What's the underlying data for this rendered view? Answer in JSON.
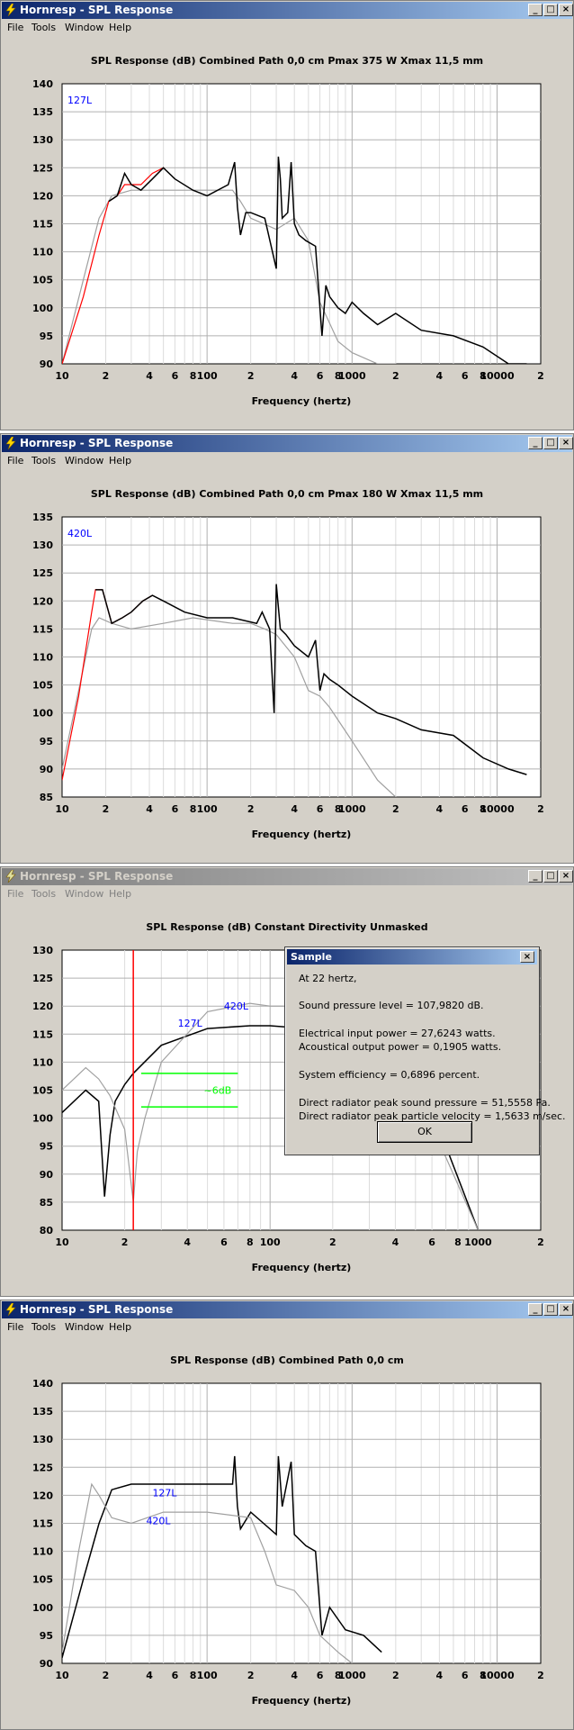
{
  "app": {
    "icon": "lightning-bolt-icon"
  },
  "colors": {
    "titlebar_active": "#0a246a",
    "titlebar_inactive": "#808080",
    "primary": "#000000",
    "secondary": "#a0a0a0",
    "highlight": "#ff0000",
    "annotation": "#0000ff",
    "marker": "#00ff00",
    "face": "#d4d0c8"
  },
  "windows": [
    {
      "title": "Hornresp - SPL Response",
      "active": true,
      "menu": [
        "File",
        "Tools",
        "Window",
        "Help"
      ],
      "chart_header": "SPL Response (dB)    Combined    Path 0,0 cm    Pmax 375 W    Xmax 11,5 mm",
      "corner_label": "127L"
    },
    {
      "title": "Hornresp - SPL Response",
      "active": true,
      "menu": [
        "File",
        "Tools",
        "Window",
        "Help"
      ],
      "chart_header": "SPL Response (dB)    Combined    Path 0,0 cm    Pmax 180 W    Xmax 11,5 mm",
      "corner_label": "420L"
    },
    {
      "title": "Hornresp - SPL Response",
      "active": false,
      "menu": [
        "File",
        "Tools",
        "Window",
        "Help"
      ],
      "chart_header": "SPL Response (dB)    Constant Directivity    Unmasked",
      "corner_label": ""
    },
    {
      "title": "Hornresp - SPL Response",
      "active": true,
      "menu": [
        "File",
        "Tools",
        "Window",
        "Help"
      ],
      "chart_header": "SPL Response (dB)    Combined    Path 0,0 cm",
      "corner_label": ""
    }
  ],
  "dialog": {
    "title": "Sample",
    "lines": [
      "At 22 hertz,",
      "Sound pressure level = 107,9820 dB.",
      "Electrical input power = 27,6243 watts.",
      "Acoustical output power = 0,1905 watts.",
      "System efficiency = 0,6896 percent.",
      "Direct radiator peak sound pressure = 51,5558 Pa.",
      "Direct radiator peak particle velocity = 1,5633 m/sec."
    ],
    "ok_label": "OK"
  },
  "chart_data": [
    {
      "type": "line",
      "xlabel": "Frequency (hertz)",
      "ylabel": "SPL Response (dB)",
      "x_scale": "log",
      "xlim": [
        10,
        20000
      ],
      "ylim": [
        90,
        140
      ],
      "yticks": [
        90,
        95,
        100,
        105,
        110,
        115,
        120,
        125,
        130,
        135,
        140
      ],
      "xtick_labels": [
        "10",
        "2",
        "4",
        "6",
        "8",
        "100",
        "2",
        "4",
        "6",
        "8",
        "1000",
        "2",
        "4",
        "6",
        "8",
        "10000",
        "2"
      ],
      "grid": true,
      "series": [
        {
          "color": "#a0a0a0",
          "x": [
            10,
            14,
            18,
            22,
            30,
            50,
            100,
            150,
            170,
            200,
            300,
            400,
            500,
            600,
            800,
            1000,
            1500,
            2000
          ],
          "y": [
            90,
            105,
            116,
            120,
            121,
            121,
            121,
            121,
            119,
            116,
            114,
            116,
            112,
            101,
            94,
            92,
            90,
            90
          ]
        },
        {
          "color": "#ff0000",
          "x": [
            10,
            14,
            18,
            21,
            24,
            27,
            30,
            35,
            42,
            50
          ],
          "y": [
            90,
            102,
            113,
            119,
            120,
            122,
            122,
            122,
            124,
            125
          ]
        },
        {
          "color": "#000000",
          "x": [
            21,
            24,
            27,
            30,
            35,
            42,
            50,
            60,
            80,
            100,
            140,
            155,
            162,
            170,
            185,
            200,
            250,
            300,
            310,
            320,
            330,
            360,
            380,
            400,
            430,
            480,
            560,
            600,
            620,
            660,
            700,
            800,
            900,
            1000,
            1200,
            1500,
            2000,
            3000,
            5000,
            8000,
            12000,
            16000
          ],
          "y": [
            119,
            120,
            124,
            122,
            121,
            123,
            125,
            123,
            121,
            120,
            122,
            126,
            118,
            113,
            117,
            117,
            116,
            107,
            127,
            123,
            116,
            117,
            126,
            115,
            113,
            112,
            111,
            100,
            95,
            104,
            102,
            100,
            99,
            101,
            99,
            97,
            99,
            96,
            95,
            93,
            90,
            90
          ]
        }
      ],
      "annotations": [
        {
          "text": "127L",
          "position": "top-left"
        }
      ]
    },
    {
      "type": "line",
      "xlabel": "Frequency (hertz)",
      "ylabel": "SPL Response (dB)",
      "x_scale": "log",
      "xlim": [
        10,
        20000
      ],
      "ylim": [
        85,
        135
      ],
      "yticks": [
        85,
        90,
        95,
        100,
        105,
        110,
        115,
        120,
        125,
        130,
        135
      ],
      "xtick_labels": [
        "10",
        "2",
        "4",
        "6",
        "8",
        "100",
        "2",
        "4",
        "6",
        "8",
        "1000",
        "2",
        "4",
        "6",
        "8",
        "10000",
        "2"
      ],
      "grid": true,
      "series": [
        {
          "color": "#a0a0a0",
          "x": [
            10,
            13,
            16,
            18,
            22,
            30,
            50,
            80,
            150,
            200,
            250,
            300,
            400,
            500,
            600,
            700,
            1000,
            1500,
            2000
          ],
          "y": [
            90,
            104,
            115,
            117,
            116,
            115,
            116,
            117,
            116,
            116,
            115,
            114,
            110,
            104,
            103,
            101,
            95,
            88,
            85
          ]
        },
        {
          "color": "#ff0000",
          "x": [
            10,
            13,
            16,
            17,
            19,
            22,
            26,
            30,
            36,
            42
          ],
          "y": [
            88,
            103,
            118,
            122,
            122,
            116,
            117,
            118,
            120,
            121
          ]
        },
        {
          "color": "#000000",
          "x": [
            17,
            19,
            22,
            26,
            30,
            36,
            42,
            50,
            70,
            100,
            150,
            220,
            240,
            270,
            290,
            300,
            320,
            350,
            400,
            500,
            560,
            600,
            640,
            700,
            800,
            1000,
            1500,
            2000,
            3000,
            5000,
            8000,
            12000,
            16000
          ],
          "y": [
            122,
            122,
            116,
            117,
            118,
            120,
            121,
            120,
            118,
            117,
            117,
            116,
            118,
            115,
            100,
            123,
            115,
            114,
            112,
            110,
            113,
            104,
            107,
            106,
            105,
            103,
            100,
            99,
            97,
            96,
            92,
            90,
            89
          ]
        }
      ],
      "annotations": [
        {
          "text": "420L",
          "position": "top-left"
        }
      ]
    },
    {
      "type": "line",
      "xlabel": "Frequency (hertz)",
      "ylabel": "SPL Response (dB)",
      "x_scale": "log",
      "xlim": [
        10,
        2000
      ],
      "ylim": [
        80,
        130
      ],
      "yticks": [
        80,
        85,
        90,
        95,
        100,
        105,
        110,
        115,
        120,
        125,
        130
      ],
      "xtick_labels": [
        "10",
        "2",
        "4",
        "6",
        "8",
        "100",
        "2",
        "4",
        "6",
        "8",
        "1000",
        "2"
      ],
      "grid": true,
      "series": [
        {
          "color": "#000000",
          "name": "127L",
          "x": [
            10,
            13,
            15,
            16,
            17,
            18,
            20,
            22,
            30,
            50,
            80,
            100,
            150,
            200,
            300,
            400,
            500,
            700,
            1000
          ],
          "y": [
            101,
            105,
            103,
            86,
            97,
            103,
            106,
            108,
            113,
            116,
            116.5,
            116.5,
            116,
            115,
            113,
            109,
            103,
            95,
            80
          ]
        },
        {
          "color": "#a0a0a0",
          "name": "420L",
          "x": [
            10,
            13,
            15,
            17,
            20,
            22,
            23,
            25,
            30,
            50,
            80,
            100,
            150,
            200,
            300,
            400,
            500,
            700,
            1000
          ],
          "y": [
            105,
            109,
            107,
            104,
            98,
            85,
            94,
            100,
            110,
            119,
            120.5,
            120,
            120,
            118,
            117,
            113,
            104,
            93,
            80
          ]
        }
      ],
      "cursor": {
        "x": 22,
        "color": "#ff0000"
      },
      "markers": [
        {
          "y": 108,
          "color": "#00ff00"
        },
        {
          "y": 102,
          "color": "#00ff00"
        }
      ],
      "annotations": [
        {
          "text": "~6dB"
        },
        {
          "text": "127L"
        },
        {
          "text": "420L"
        }
      ]
    },
    {
      "type": "line",
      "xlabel": "Frequency (hertz)",
      "ylabel": "SPL Response (dB)",
      "x_scale": "log",
      "xlim": [
        10,
        20000
      ],
      "ylim": [
        90,
        140
      ],
      "yticks": [
        90,
        95,
        100,
        105,
        110,
        115,
        120,
        125,
        130,
        135,
        140
      ],
      "xtick_labels": [
        "10",
        "2",
        "4",
        "6",
        "8",
        "100",
        "2",
        "4",
        "6",
        "8",
        "1000",
        "2",
        "4",
        "6",
        "8",
        "10000",
        "2"
      ],
      "grid": true,
      "series": [
        {
          "color": "#000000",
          "name": "127L",
          "x": [
            10,
            14,
            18,
            22,
            30,
            50,
            100,
            150,
            155,
            162,
            170,
            200,
            300,
            310,
            330,
            380,
            400,
            480,
            560,
            620,
            700,
            900,
            1200,
            1600
          ],
          "y": [
            91,
            105,
            115,
            121,
            122,
            122,
            122,
            122,
            127,
            118,
            114,
            117,
            113,
            127,
            118,
            126,
            113,
            111,
            110,
            95,
            100,
            96,
            95,
            92
          ]
        },
        {
          "color": "#a0a0a0",
          "name": "420L",
          "x": [
            10,
            13,
            16,
            18,
            22,
            30,
            50,
            100,
            200,
            250,
            300,
            400,
            500,
            600,
            800,
            1000
          ],
          "y": [
            92,
            110,
            122,
            120,
            116,
            115,
            117,
            117,
            116,
            110,
            104,
            103,
            100,
            95,
            92,
            90
          ]
        }
      ],
      "annotations": [
        {
          "text": "127L"
        },
        {
          "text": "420L"
        }
      ]
    }
  ]
}
